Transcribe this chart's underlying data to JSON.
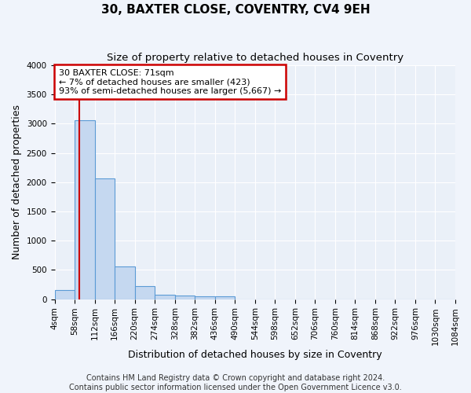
{
  "title": "30, BAXTER CLOSE, COVENTRY, CV4 9EH",
  "subtitle": "Size of property relative to detached houses in Coventry",
  "xlabel": "Distribution of detached houses by size in Coventry",
  "ylabel": "Number of detached properties",
  "bar_color": "#c5d8f0",
  "bar_edge_color": "#5b9bd5",
  "bin_edges": [
    4,
    58,
    112,
    166,
    220,
    274,
    328,
    382,
    436,
    490,
    544,
    598,
    652,
    706,
    760,
    814,
    868,
    922,
    976,
    1030,
    1084
  ],
  "bar_heights": [
    150,
    3060,
    2060,
    560,
    220,
    80,
    60,
    50,
    50,
    0,
    0,
    0,
    0,
    0,
    0,
    0,
    0,
    0,
    0,
    0
  ],
  "tick_labels": [
    "4sqm",
    "58sqm",
    "112sqm",
    "166sqm",
    "220sqm",
    "274sqm",
    "328sqm",
    "382sqm",
    "436sqm",
    "490sqm",
    "544sqm",
    "598sqm",
    "652sqm",
    "706sqm",
    "760sqm",
    "814sqm",
    "868sqm",
    "922sqm",
    "976sqm",
    "1030sqm",
    "1084sqm"
  ],
  "ylim": [
    0,
    4000
  ],
  "yticks": [
    0,
    500,
    1000,
    1500,
    2000,
    2500,
    3000,
    3500,
    4000
  ],
  "property_line_x": 71,
  "property_line_color": "#cc0000",
  "annotation_text": "30 BAXTER CLOSE: 71sqm\n← 7% of detached houses are smaller (423)\n93% of semi-detached houses are larger (5,667) →",
  "annotation_box_color": "#ffffff",
  "annotation_edge_color": "#cc0000",
  "footer_line1": "Contains HM Land Registry data © Crown copyright and database right 2024.",
  "footer_line2": "Contains public sector information licensed under the Open Government Licence v3.0.",
  "bg_color": "#eaf0f8",
  "fig_color": "#f0f4fb",
  "grid_color": "#ffffff",
  "title_fontsize": 11,
  "subtitle_fontsize": 9.5,
  "axis_label_fontsize": 9,
  "tick_fontsize": 7.5,
  "annotation_fontsize": 8,
  "footer_fontsize": 7
}
